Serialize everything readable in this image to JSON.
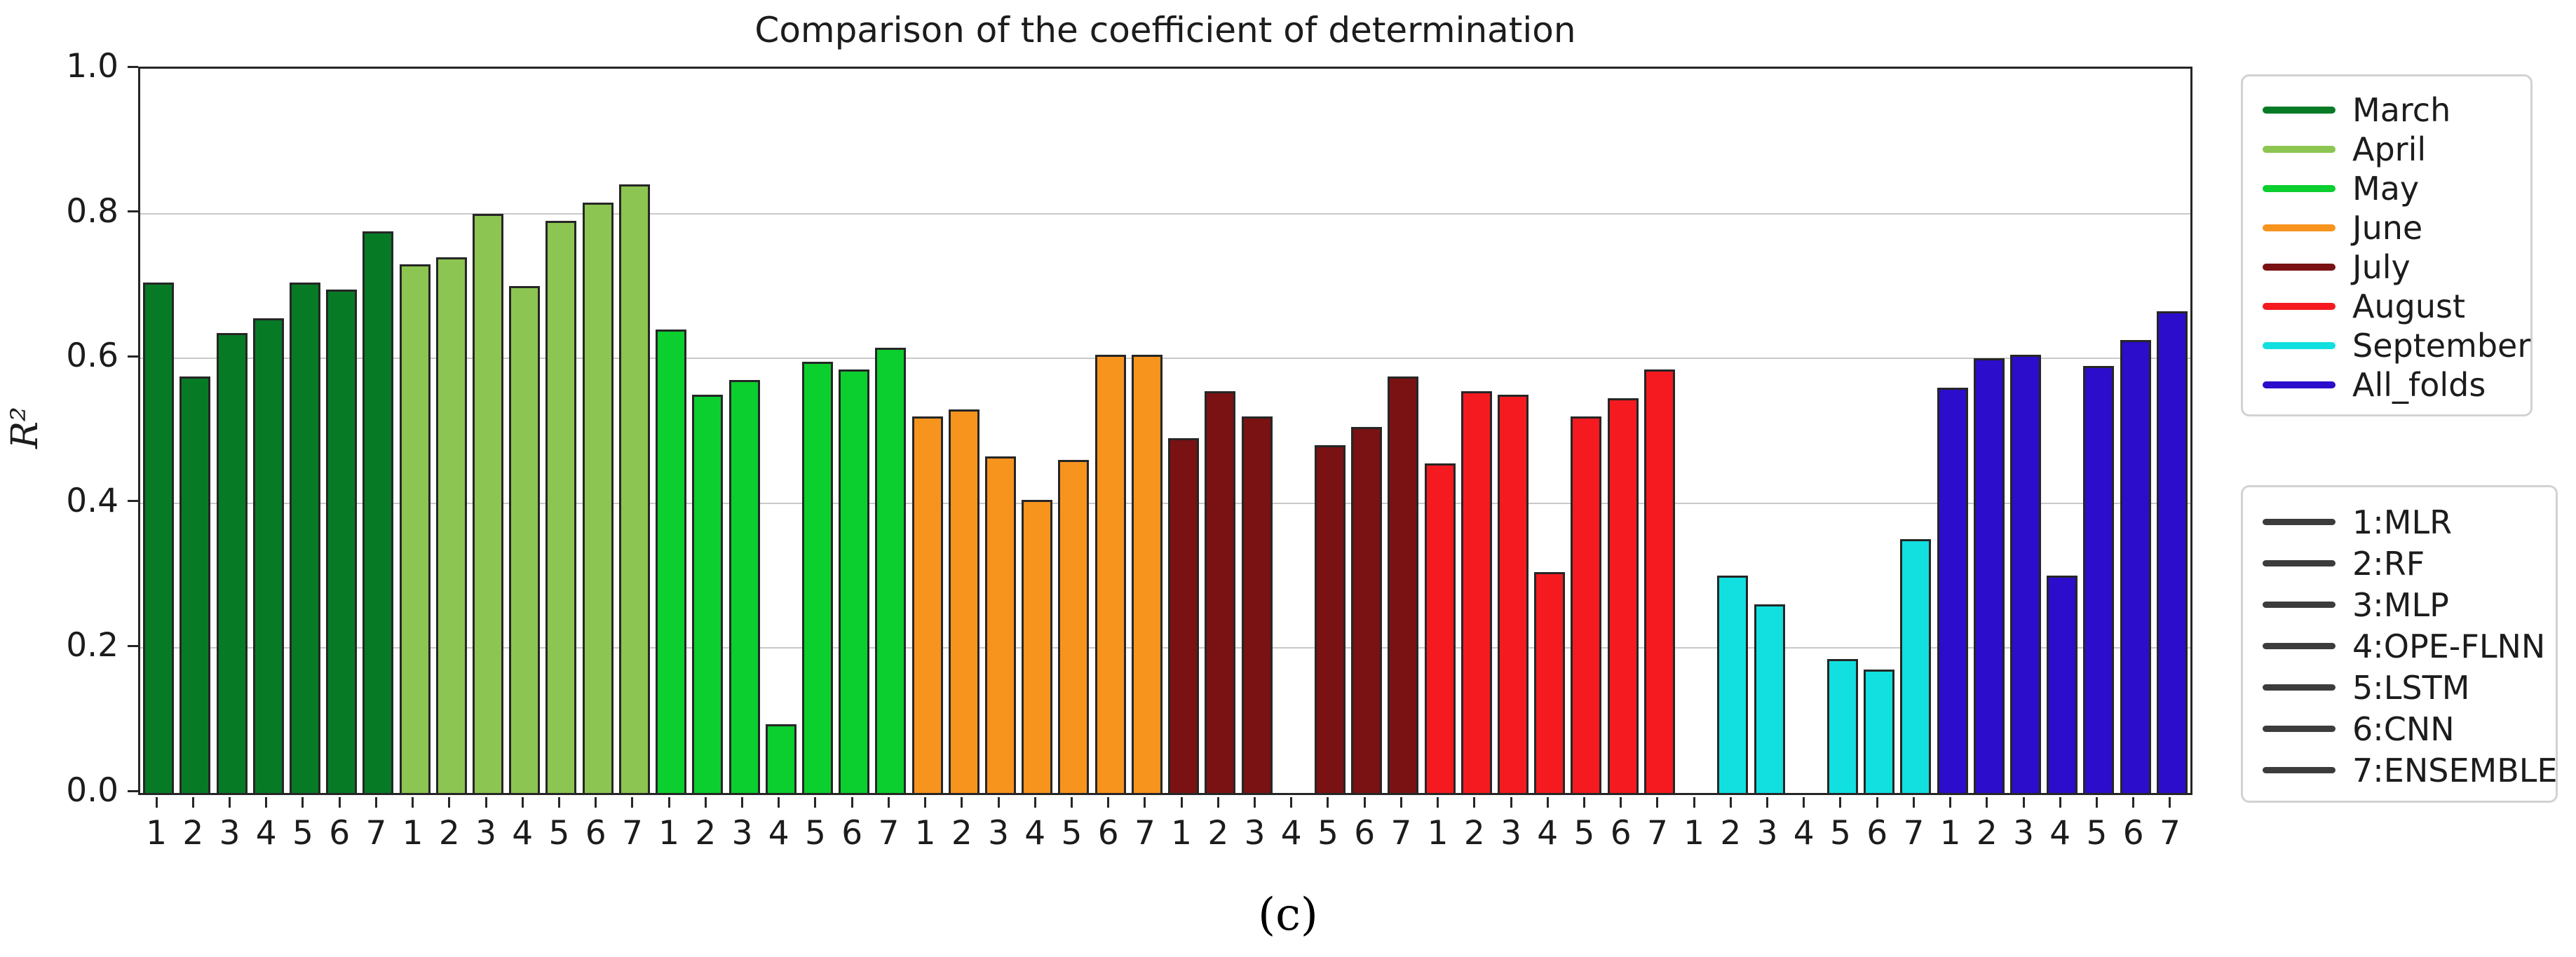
{
  "figure": {
    "caption": "(c)",
    "background": "#ffffff"
  },
  "chart_data": {
    "type": "bar",
    "title": "Comparison of the coefficient of determination",
    "ylabel": "R²",
    "ylim": [
      0.0,
      1.0
    ],
    "yticks": [
      0.0,
      0.2,
      0.4,
      0.6,
      0.8,
      1.0
    ],
    "grid": "horizontal",
    "grid_color": "#c9c9c9",
    "axis_color": "#262626",
    "bar_edge_color": "#262626",
    "categories_per_group": [
      "1",
      "2",
      "3",
      "4",
      "5",
      "6",
      "7"
    ],
    "series": [
      {
        "name": "March",
        "color": "#077A26",
        "values": [
          0.705,
          0.575,
          0.635,
          0.655,
          0.705,
          0.695,
          0.775
        ]
      },
      {
        "name": "April",
        "color": "#8CC551",
        "values": [
          0.73,
          0.74,
          0.8,
          0.7,
          0.79,
          0.815,
          0.84
        ]
      },
      {
        "name": "May",
        "color": "#0BCE2F",
        "values": [
          0.64,
          0.55,
          0.57,
          0.095,
          0.595,
          0.585,
          0.615
        ]
      },
      {
        "name": "June",
        "color": "#F7941E",
        "values": [
          0.52,
          0.53,
          0.465,
          0.405,
          0.46,
          0.605,
          0.605
        ]
      },
      {
        "name": "July",
        "color": "#7A1113",
        "values": [
          0.49,
          0.555,
          0.52,
          0,
          0.48,
          0.505,
          0.575
        ]
      },
      {
        "name": "August",
        "color": "#F41A20",
        "values": [
          0.455,
          0.555,
          0.55,
          0.305,
          0.52,
          0.545,
          0.585
        ]
      },
      {
        "name": "September",
        "color": "#12DFDF",
        "values": [
          0,
          0.3,
          0.26,
          0,
          0.185,
          0.17,
          0.35
        ]
      },
      {
        "name": "All_folds",
        "color": "#2B0DCB",
        "values": [
          0.56,
          0.6,
          0.605,
          0.3,
          0.59,
          0.625,
          0.665
        ]
      }
    ],
    "legend_position": "outside-right",
    "model_legend": [
      "1:MLR",
      "2:RF",
      "3:MLP",
      "4:OPE-FLNN",
      "5:LSTM",
      "6:CNN",
      "7:ENSEMBLE"
    ],
    "model_legend_line_color": "#3c3c3c"
  }
}
